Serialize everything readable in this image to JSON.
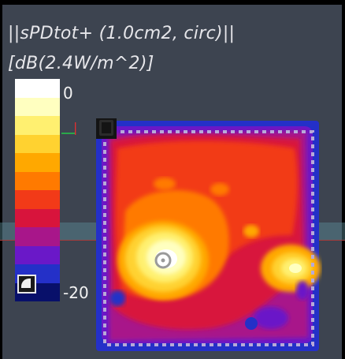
{
  "title": {
    "line1": "||sPDtot+ (1.0cm2, circ)||",
    "line2": "[dB(2.4W/m^2)]"
  },
  "colorbar": {
    "max_label": "0",
    "min_label": "-20",
    "colors": [
      "#ffffff",
      "#ffffc0",
      "#fff070",
      "#ffd230",
      "#ffa800",
      "#ff7a00",
      "#f23a18",
      "#d8143c",
      "#a8168a",
      "#6a18c8",
      "#2430c8",
      "#08106a"
    ]
  },
  "colors": {
    "background": "#3d4450",
    "accent_band": "#5a8c96",
    "baseline": "#a23b3b",
    "grid_dots": "#b7a9d8"
  },
  "icons": [
    "corner-toggle-icon",
    "probe-marker-icon"
  ]
}
